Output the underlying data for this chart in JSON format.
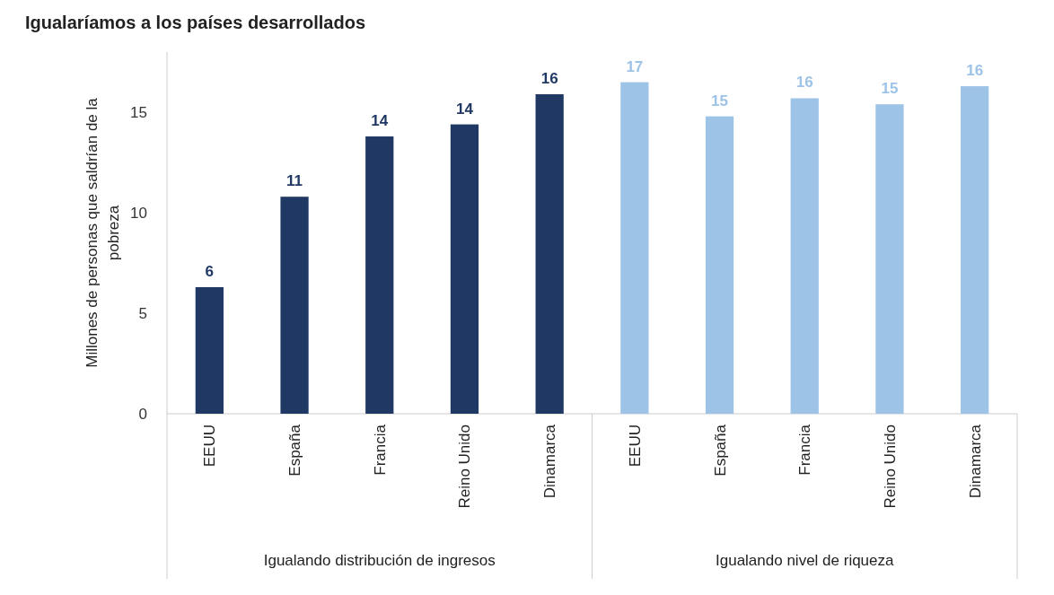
{
  "chart_data": {
    "type": "bar",
    "title": "Igualaríamos a los países desarrollados",
    "ylabel": "Millones de personas que saldrían de la pobreza",
    "categories": [
      "EEUU",
      "España",
      "Francia",
      "Reino Unido",
      "Dinamarca",
      "EEUU",
      "España",
      "Francia",
      "Reino Unido",
      "Dinamarca"
    ],
    "values": [
      6.3,
      10.8,
      13.8,
      14.4,
      15.9,
      16.5,
      14.8,
      15.7,
      15.4,
      16.3
    ],
    "value_labels": [
      "6",
      "11",
      "14",
      "14",
      "16",
      "17",
      "15",
      "16",
      "15",
      "16"
    ],
    "colors": [
      "#1f3864",
      "#1f3864",
      "#1f3864",
      "#1f3864",
      "#1f3864",
      "#9dc3e6",
      "#9dc3e6",
      "#9dc3e6",
      "#9dc3e6",
      "#9dc3e6"
    ],
    "annotations": [
      "Igualando distribución de ingresos",
      "Igualando nivel de riqueza"
    ],
    "ylim": [
      0,
      18
    ],
    "yticks": [
      0,
      5,
      10,
      15
    ],
    "grid": false
  }
}
